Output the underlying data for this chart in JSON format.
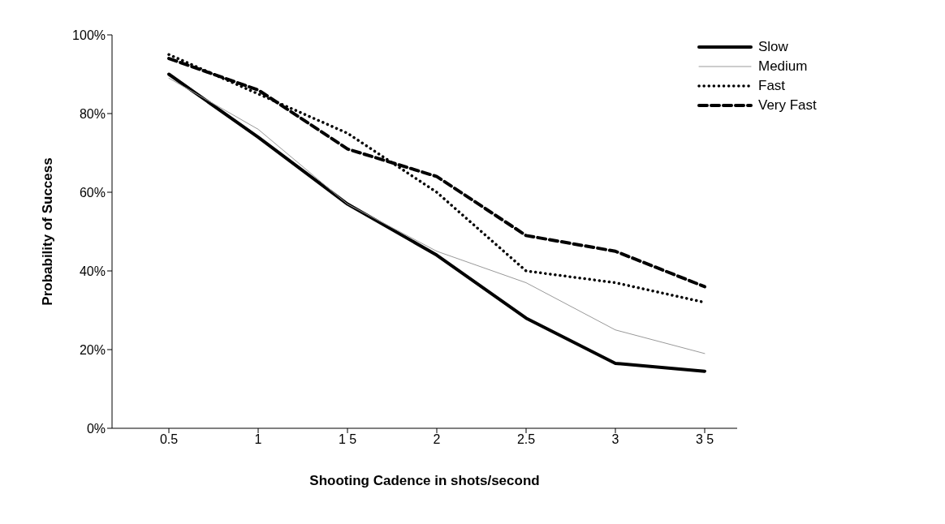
{
  "chart_data": {
    "type": "line",
    "xlabel": "Shooting Cadence in shots/second",
    "ylabel": "Probability of Success",
    "categories": [
      "0.5",
      "1",
      "1 5",
      "2",
      "2.5",
      "3",
      "3 5"
    ],
    "series": [
      {
        "name": "Slow",
        "color": "#000000",
        "line_style": "solid",
        "values": [
          90,
          74,
          57,
          44,
          28,
          16.5,
          14.5
        ]
      },
      {
        "name": "Medium",
        "color": "#999999",
        "line_style": "solid",
        "values": [
          89,
          76,
          57,
          45,
          37,
          25,
          19
        ]
      },
      {
        "name": "Fast",
        "color": "#000000",
        "line_style": "dotted",
        "values": [
          95,
          85,
          75,
          60,
          40,
          37,
          32
        ]
      },
      {
        "name": "Very Fast",
        "color": "#000000",
        "line_style": "dashed",
        "values": [
          94,
          86,
          71,
          64,
          49,
          45,
          36
        ]
      }
    ],
    "ylim": [
      0,
      100
    ],
    "yticks": [
      {
        "value": 0,
        "label": "0%"
      },
      {
        "value": 20,
        "label": "20%"
      },
      {
        "value": 40,
        "label": "40%"
      },
      {
        "value": 60,
        "label": "60%"
      },
      {
        "value": 80,
        "label": "80%"
      },
      {
        "value": 100,
        "label": "100%"
      }
    ],
    "grid": false,
    "legend": "top right",
    "marker": "none"
  }
}
